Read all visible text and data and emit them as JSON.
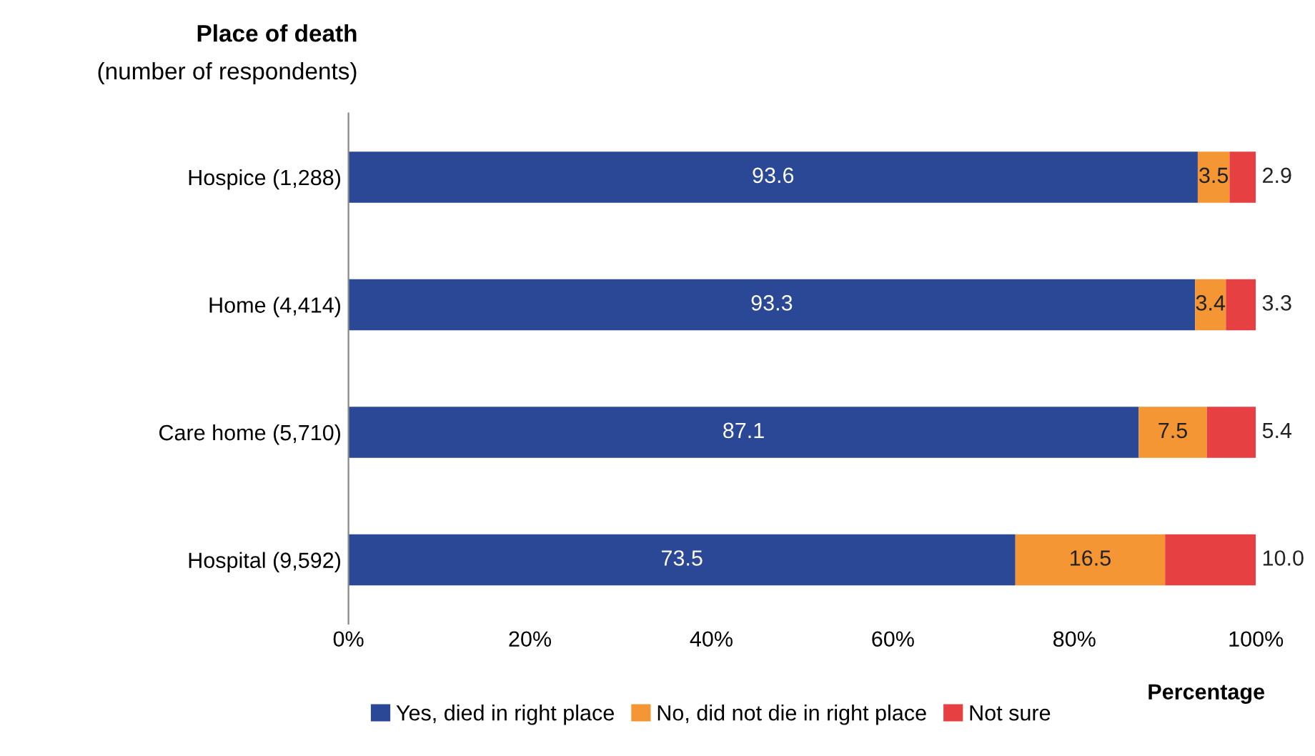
{
  "chart_data": {
    "type": "bar",
    "orientation": "horizontal",
    "stacked": true,
    "ylabel": "Place of death",
    "xlabel": "Percentage",
    "annotations": [
      "(number of respondents)"
    ],
    "categories": [
      "Hospice (1,288)",
      "Home (4,414)",
      "Care home (5,710)",
      "Hospital (9,592)"
    ],
    "series": [
      {
        "name": "Yes, died in right place",
        "color": "#2b4897",
        "values": [
          93.6,
          93.3,
          87.1,
          73.5
        ],
        "value_labels": [
          "93.6",
          "93.3",
          "87.1",
          "73.5"
        ]
      },
      {
        "name": "No, did not die in right place",
        "color": "#f39633",
        "values": [
          3.5,
          3.4,
          7.5,
          16.5
        ],
        "value_labels": [
          "3.5",
          "3.4",
          "7.5",
          "16.5"
        ]
      },
      {
        "name": "Not sure",
        "color": "#e64042",
        "values": [
          2.9,
          3.3,
          5.4,
          10.0
        ],
        "value_labels": [
          "2.9",
          "3.3",
          "5.4",
          "10.0"
        ]
      }
    ],
    "xlim": [
      0,
      100
    ],
    "xticks": [
      {
        "value": 0,
        "label": "0%"
      },
      {
        "value": 20,
        "label": "20%"
      },
      {
        "value": 40,
        "label": "40%"
      },
      {
        "value": 60,
        "label": "60%"
      },
      {
        "value": 80,
        "label": "80%"
      },
      {
        "value": 100,
        "label": "100%"
      }
    ],
    "grid": false,
    "legend": "bottom"
  }
}
